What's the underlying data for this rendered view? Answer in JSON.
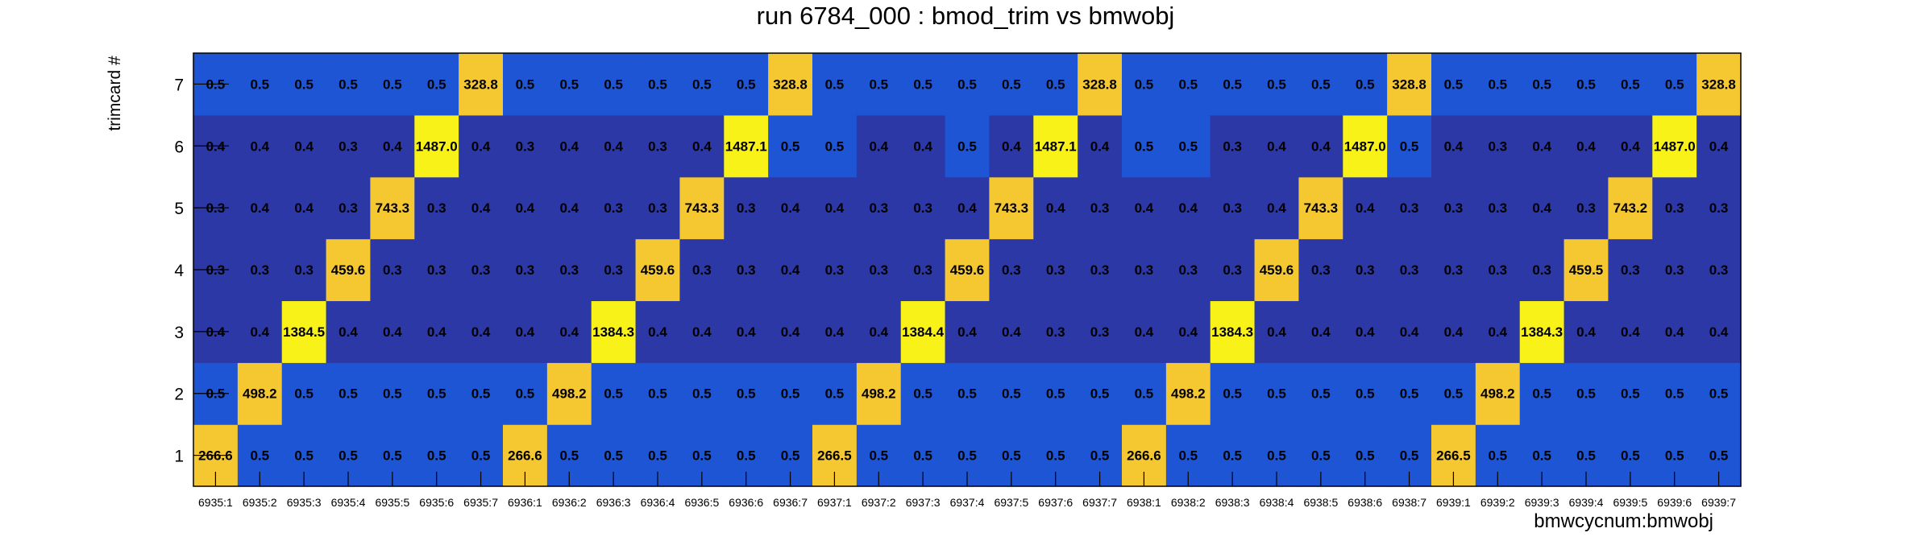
{
  "chart_data": {
    "type": "heatmap",
    "title": "run 6784_000 : bmod_trim vs bmwobj",
    "xlabel": "bmwcycnum:bmwobj",
    "ylabel": "trimcard #",
    "x_categories": [
      "6935:1",
      "6935:2",
      "6935:3",
      "6935:4",
      "6935:5",
      "6935:6",
      "6935:7",
      "6936:1",
      "6936:2",
      "6936:3",
      "6936:4",
      "6936:5",
      "6936:6",
      "6936:7",
      "6937:1",
      "6937:2",
      "6937:3",
      "6937:4",
      "6937:5",
      "6937:6",
      "6937:7",
      "6938:1",
      "6938:2",
      "6938:3",
      "6938:4",
      "6938:5",
      "6938:6",
      "6938:7",
      "6939:1",
      "6939:2",
      "6939:3",
      "6939:4",
      "6939:5",
      "6939:6",
      "6939:7"
    ],
    "y_categories": [
      "1",
      "2",
      "3",
      "4",
      "5",
      "6",
      "7"
    ],
    "values": [
      [
        "266.6",
        "0.5",
        "0.5",
        "0.5",
        "0.5",
        "0.5",
        "0.5",
        "266.6",
        "0.5",
        "0.5",
        "0.5",
        "0.5",
        "0.5",
        "0.5",
        "266.5",
        "0.5",
        "0.5",
        "0.5",
        "0.5",
        "0.5",
        "0.5",
        "266.6",
        "0.5",
        "0.5",
        "0.5",
        "0.5",
        "0.5",
        "0.5",
        "266.5",
        "0.5",
        "0.5",
        "0.5",
        "0.5",
        "0.5",
        "0.5"
      ],
      [
        "0.5",
        "498.2",
        "0.5",
        "0.5",
        "0.5",
        "0.5",
        "0.5",
        "0.5",
        "498.2",
        "0.5",
        "0.5",
        "0.5",
        "0.5",
        "0.5",
        "0.5",
        "498.2",
        "0.5",
        "0.5",
        "0.5",
        "0.5",
        "0.5",
        "0.5",
        "498.2",
        "0.5",
        "0.5",
        "0.5",
        "0.5",
        "0.5",
        "0.5",
        "498.2",
        "0.5",
        "0.5",
        "0.5",
        "0.5",
        "0.5"
      ],
      [
        "0.4",
        "0.4",
        "1384.5",
        "0.4",
        "0.4",
        "0.4",
        "0.4",
        "0.4",
        "0.4",
        "1384.3",
        "0.4",
        "0.4",
        "0.4",
        "0.4",
        "0.4",
        "0.4",
        "1384.4",
        "0.4",
        "0.4",
        "0.3",
        "0.3",
        "0.4",
        "0.4",
        "1384.3",
        "0.4",
        "0.4",
        "0.4",
        "0.4",
        "0.4",
        "0.4",
        "1384.3",
        "0.4",
        "0.4",
        "0.4",
        "0.4"
      ],
      [
        "0.3",
        "0.3",
        "0.3",
        "459.6",
        "0.3",
        "0.3",
        "0.3",
        "0.3",
        "0.3",
        "0.3",
        "459.6",
        "0.3",
        "0.3",
        "0.4",
        "0.3",
        "0.3",
        "0.3",
        "459.6",
        "0.3",
        "0.3",
        "0.3",
        "0.3",
        "0.3",
        "0.3",
        "459.6",
        "0.3",
        "0.3",
        "0.3",
        "0.3",
        "0.3",
        "0.3",
        "459.5",
        "0.3",
        "0.3",
        "0.3"
      ],
      [
        "0.3",
        "0.4",
        "0.4",
        "0.3",
        "743.3",
        "0.3",
        "0.4",
        "0.4",
        "0.4",
        "0.3",
        "0.3",
        "743.3",
        "0.3",
        "0.4",
        "0.4",
        "0.3",
        "0.3",
        "0.4",
        "743.3",
        "0.4",
        "0.3",
        "0.4",
        "0.4",
        "0.3",
        "0.4",
        "743.3",
        "0.4",
        "0.3",
        "0.3",
        "0.3",
        "0.4",
        "0.3",
        "743.2",
        "0.3",
        "0.3"
      ],
      [
        "0.4",
        "0.4",
        "0.4",
        "0.3",
        "0.4",
        "1487.0",
        "0.4",
        "0.3",
        "0.4",
        "0.4",
        "0.3",
        "0.4",
        "1487.1",
        "0.5",
        "0.5",
        "0.4",
        "0.4",
        "0.5",
        "0.4",
        "1487.1",
        "0.4",
        "0.5",
        "0.5",
        "0.3",
        "0.4",
        "0.4",
        "1487.0",
        "0.5",
        "0.4",
        "0.3",
        "0.4",
        "0.4",
        "0.4",
        "1487.0",
        "0.4"
      ],
      [
        "0.5",
        "0.5",
        "0.5",
        "0.5",
        "0.5",
        "0.5",
        "328.8",
        "0.5",
        "0.5",
        "0.5",
        "0.5",
        "0.5",
        "0.5",
        "328.8",
        "0.5",
        "0.5",
        "0.5",
        "0.5",
        "0.5",
        "0.5",
        "328.8",
        "0.5",
        "0.5",
        "0.5",
        "0.5",
        "0.5",
        "0.5",
        "328.8",
        "0.5",
        "0.5",
        "0.5",
        "0.5",
        "0.5",
        "0.5",
        "328.8"
      ]
    ],
    "colors": {
      "very_low": "#2b38a6",
      "low": "#1d55d4",
      "mid": "#f5c731",
      "high": "#f9f218",
      "text": "#000000"
    },
    "grid": false,
    "legend": "none"
  }
}
